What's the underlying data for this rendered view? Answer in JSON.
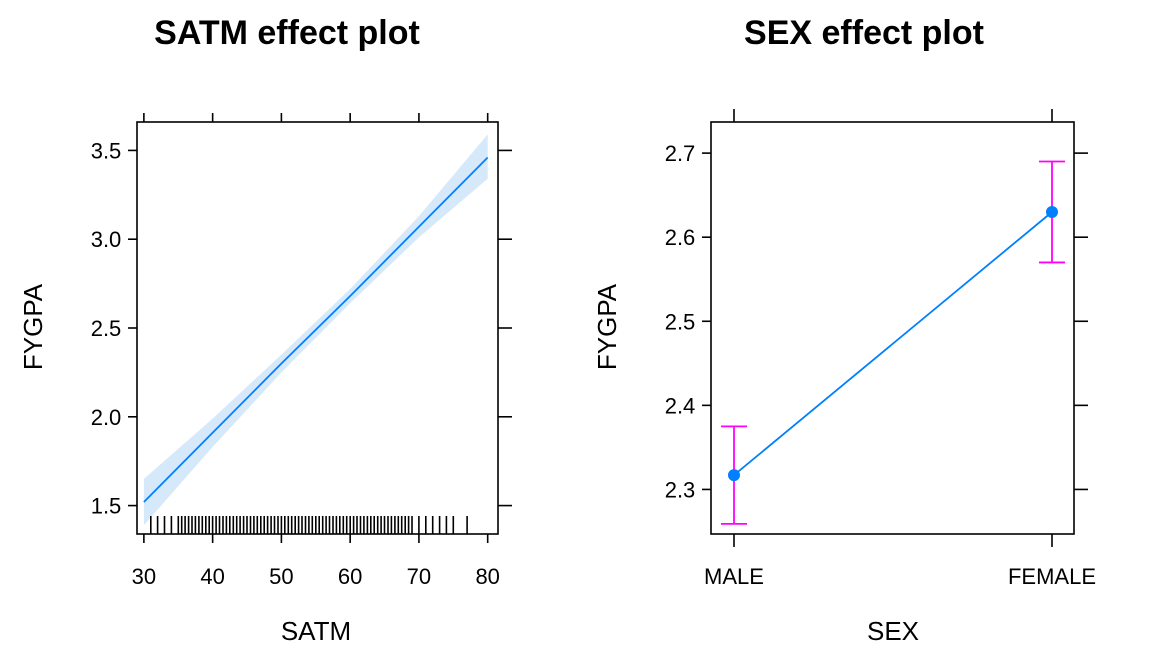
{
  "chart_data": [
    {
      "type": "line",
      "title": "SATM effect plot",
      "xlabel": "SATM",
      "ylabel": "FYGPA",
      "xlim": [
        29,
        81.5
      ],
      "ylim": [
        1.34,
        3.66
      ],
      "x_ticks": [
        30,
        40,
        50,
        60,
        70,
        80
      ],
      "y_ticks": [
        1.5,
        2.0,
        2.5,
        3.0,
        3.5
      ],
      "x_tick_labels": [
        "30",
        "40",
        "50",
        "60",
        "70",
        "80"
      ],
      "y_tick_labels": [
        "1.5",
        "2.0",
        "2.5",
        "3.0",
        "3.5"
      ],
      "grid": false,
      "line_color": "#0080ff",
      "band_color": "#d6e9fb",
      "series": [
        {
          "x": [
            30,
            40,
            50,
            60,
            70,
            80
          ],
          "values": [
            1.52,
            1.91,
            2.3,
            2.68,
            3.07,
            3.46
          ],
          "lower": [
            1.39,
            1.83,
            2.25,
            2.64,
            3.01,
            3.34
          ],
          "upper": [
            1.65,
            1.99,
            2.35,
            2.72,
            3.13,
            3.59
          ]
        }
      ],
      "rug_x": [
        31,
        32,
        33,
        34,
        35,
        35.5,
        36,
        36.5,
        37,
        37.5,
        38,
        38.5,
        39,
        39.5,
        40,
        40.5,
        41,
        41.5,
        42,
        42.5,
        43,
        43.5,
        44,
        44.5,
        45,
        45.5,
        46,
        46.5,
        47,
        47.5,
        48,
        48.5,
        49,
        49.5,
        50,
        50.5,
        51,
        51.5,
        52,
        52.5,
        53,
        53.5,
        54,
        54.5,
        55,
        55.5,
        56,
        56.5,
        57,
        57.5,
        58,
        58.5,
        59,
        59.5,
        60,
        60.5,
        61,
        61.5,
        62,
        62.5,
        63,
        63.5,
        64,
        64.5,
        65,
        65.5,
        66,
        66.5,
        67,
        67.5,
        68,
        68.5,
        69,
        70,
        71,
        72,
        73,
        74,
        75,
        77
      ]
    },
    {
      "type": "scatter",
      "title": "SEX effect plot",
      "xlabel": "SEX",
      "ylabel": "FYGPA",
      "categories": [
        "MALE",
        "FEMALE"
      ],
      "ylim": [
        2.247,
        2.737
      ],
      "y_ticks": [
        2.3,
        2.4,
        2.5,
        2.6,
        2.7
      ],
      "y_tick_labels": [
        "2.3",
        "2.4",
        "2.5",
        "2.6",
        "2.7"
      ],
      "grid": false,
      "line_color": "#0080ff",
      "point_color": "#0080ff",
      "errorbar_color": "#ff00ff",
      "series": [
        {
          "values": [
            2.317,
            2.63
          ],
          "lower": [
            2.259,
            2.57
          ],
          "upper": [
            2.375,
            2.69
          ]
        }
      ]
    }
  ]
}
